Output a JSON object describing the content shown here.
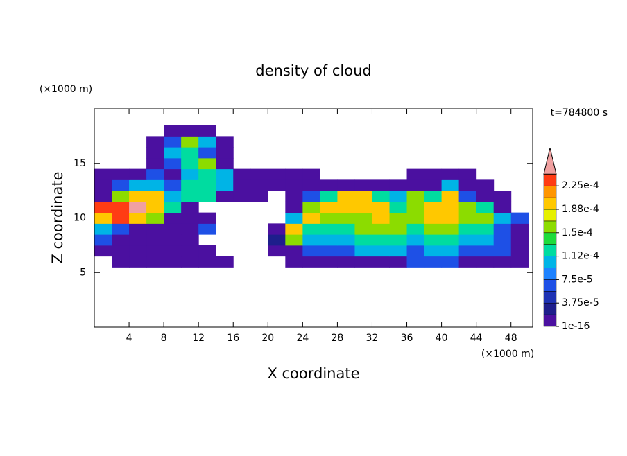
{
  "chart_data": {
    "type": "contour",
    "title": "density of cloud",
    "x_label": "X coordinate",
    "y_label": "Z coordinate",
    "x_unit": "(×1000 m)",
    "y_unit": "(×1000 m)",
    "time_label": "t=784800 s",
    "xlim": [
      0,
      50.5
    ],
    "ylim": [
      0,
      20
    ],
    "xticks": [
      4,
      8,
      12,
      16,
      20,
      24,
      28,
      32,
      36,
      40,
      44,
      48
    ],
    "yticks": [
      5,
      10,
      15
    ],
    "x": [
      1,
      3,
      5,
      7,
      9,
      11,
      13,
      15,
      17,
      19,
      21,
      23,
      25,
      27,
      29,
      31,
      33,
      35,
      37,
      39,
      41,
      43,
      45,
      47,
      49
    ],
    "z": [
      6,
      7,
      8,
      9,
      10,
      11,
      12,
      13,
      14,
      15,
      16,
      17,
      18
    ],
    "values": [
      [
        null,
        1e-05,
        1e-05,
        1e-05,
        1e-05,
        1e-05,
        1e-05,
        1e-05,
        null,
        null,
        null,
        1e-05,
        1e-05,
        1e-05,
        1e-05,
        1e-05,
        1e-05,
        1e-05,
        6e-05,
        6e-05,
        6e-05,
        1e-05,
        1e-05,
        1e-05,
        1e-05
      ],
      [
        1e-05,
        1e-05,
        1e-05,
        1e-05,
        1e-05,
        1e-05,
        1e-05,
        null,
        null,
        null,
        1e-05,
        1e-05,
        6e-05,
        6e-05,
        6e-05,
        0.0001,
        0.0001,
        0.0001,
        6e-05,
        0.0001,
        0.0001,
        6e-05,
        6e-05,
        6e-05,
        1e-05
      ],
      [
        6e-05,
        1e-05,
        1e-05,
        1e-05,
        1e-05,
        1e-05,
        null,
        null,
        null,
        null,
        3e-05,
        0.00016,
        0.0001,
        0.0001,
        0.0001,
        0.00013,
        0.00013,
        0.00013,
        0.0001,
        0.00013,
        0.00013,
        0.0001,
        0.0001,
        6e-05,
        1e-05
      ],
      [
        0.0001,
        6e-05,
        1e-05,
        1e-05,
        1e-05,
        1e-05,
        6e-05,
        null,
        null,
        null,
        1e-05,
        0.0002,
        0.00013,
        0.00013,
        0.00013,
        0.00016,
        0.00016,
        0.00016,
        0.00013,
        0.00016,
        0.00016,
        0.00013,
        0.00013,
        6e-05,
        1e-05
      ],
      [
        0.0002,
        0.00023,
        0.0002,
        0.00016,
        1e-05,
        1e-05,
        1e-05,
        null,
        null,
        null,
        null,
        0.0001,
        0.0002,
        0.00016,
        0.00016,
        0.00016,
        0.0002,
        0.00016,
        0.00016,
        0.0002,
        0.0002,
        0.00016,
        0.00016,
        0.0001,
        6e-05
      ],
      [
        0.00023,
        0.00023,
        0.00025,
        0.0002,
        0.00013,
        1e-05,
        null,
        null,
        null,
        null,
        null,
        1e-05,
        0.00016,
        0.0002,
        0.0002,
        0.0002,
        0.0002,
        0.00013,
        0.00016,
        0.0002,
        0.0002,
        0.00016,
        0.00013,
        1e-05,
        null
      ],
      [
        1e-05,
        0.00016,
        0.0002,
        0.0002,
        0.0001,
        0.00013,
        0.00013,
        1e-05,
        1e-05,
        1e-05,
        null,
        1e-05,
        6e-05,
        0.00013,
        0.0002,
        0.0002,
        0.00013,
        0.0001,
        0.00016,
        0.00013,
        0.0002,
        6e-05,
        1e-05,
        1e-05,
        null
      ],
      [
        1e-05,
        6e-05,
        0.0001,
        0.0001,
        6e-05,
        0.00013,
        0.00013,
        0.0001,
        1e-05,
        1e-05,
        1e-05,
        1e-05,
        1e-05,
        1e-05,
        1e-05,
        1e-05,
        1e-05,
        1e-05,
        1e-05,
        1e-05,
        0.0001,
        1e-05,
        1e-05,
        null,
        null
      ],
      [
        1e-05,
        1e-05,
        1e-05,
        6e-05,
        1e-05,
        0.0001,
        0.00013,
        0.0001,
        1e-05,
        1e-05,
        1e-05,
        1e-05,
        1e-05,
        null,
        null,
        null,
        null,
        null,
        1e-05,
        1e-05,
        1e-05,
        1e-05,
        null,
        null,
        null
      ],
      [
        null,
        null,
        null,
        1e-05,
        6e-05,
        0.00013,
        0.00016,
        1e-05,
        null,
        null,
        null,
        null,
        null,
        null,
        null,
        null,
        null,
        null,
        null,
        null,
        null,
        null,
        null,
        null,
        null
      ],
      [
        null,
        null,
        null,
        1e-05,
        0.0001,
        0.00013,
        6e-05,
        1e-05,
        null,
        null,
        null,
        null,
        null,
        null,
        null,
        null,
        null,
        null,
        null,
        null,
        null,
        null,
        null,
        null,
        null
      ],
      [
        null,
        null,
        null,
        1e-05,
        6e-05,
        0.00016,
        0.0001,
        1e-05,
        null,
        null,
        null,
        null,
        null,
        null,
        null,
        null,
        null,
        null,
        null,
        null,
        null,
        null,
        null,
        null,
        null
      ],
      [
        null,
        null,
        null,
        null,
        1e-05,
        1e-05,
        1e-05,
        null,
        null,
        null,
        null,
        null,
        null,
        null,
        null,
        null,
        null,
        null,
        null,
        null,
        null,
        null,
        null,
        null,
        null
      ]
    ],
    "levels": [
      1e-16,
      1.875e-05,
      3.75e-05,
      5.625e-05,
      7.5e-05,
      9.375e-05,
      0.0001125,
      0.00013125,
      0.00015,
      0.00016875,
      0.0001875,
      0.00020625,
      0.000225,
      0.00024375
    ],
    "colors": [
      "#4b10a0",
      "#1e1e8c",
      "#1e32b4",
      "#1e50e6",
      "#1e82ff",
      "#00b4e6",
      "#00dca0",
      "#1edc3c",
      "#8cdc00",
      "#e6f000",
      "#ffc800",
      "#ff9600",
      "#ff3c14",
      "#f0a0a0"
    ],
    "colorbar_ticks": [
      {
        "value": 1e-16,
        "label": "1e-16"
      },
      {
        "value": 3.75e-05,
        "label": "3.75e-5"
      },
      {
        "value": 7.5e-05,
        "label": "7.5e-5"
      },
      {
        "value": 0.0001125,
        "label": "1.12e-4"
      },
      {
        "value": 0.00015,
        "label": "1.5e-4"
      },
      {
        "value": 0.0001875,
        "label": "1.88e-4"
      },
      {
        "value": 0.000225,
        "label": "2.25e-4"
      }
    ]
  }
}
